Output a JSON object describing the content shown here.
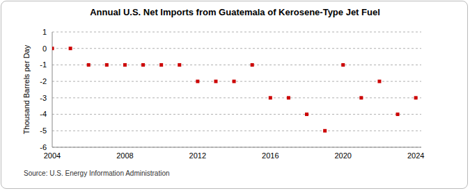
{
  "chart_data": {
    "type": "scatter",
    "title": "Annual U.S. Net Imports from Guatemala of Kerosene-Type Jet Fuel",
    "y_label": "Thousand Barrels per Day",
    "source": "Source: U.S. Energy Information Administration",
    "x": [
      2004,
      2005,
      2006,
      2007,
      2008,
      2009,
      2010,
      2011,
      2012,
      2013,
      2014,
      2015,
      2016,
      2017,
      2018,
      2019,
      2020,
      2021,
      2022,
      2023,
      2024
    ],
    "values": [
      0,
      0,
      -1,
      -1,
      -1,
      -1,
      -1,
      -1,
      -2,
      -2,
      -2,
      -1,
      -3,
      -3,
      -4,
      -5,
      -1,
      -3,
      -2,
      -4,
      -3
    ],
    "color": "#cc0000",
    "marker": "square",
    "xlim": [
      2004,
      2024.3
    ],
    "xticks": [
      2004,
      2008,
      2012,
      2016,
      2020,
      2024
    ],
    "ylim": [
      -6,
      1
    ],
    "yticks": [
      -6,
      -5,
      -4,
      -3,
      -2,
      -1,
      0,
      1
    ],
    "grid": true
  }
}
